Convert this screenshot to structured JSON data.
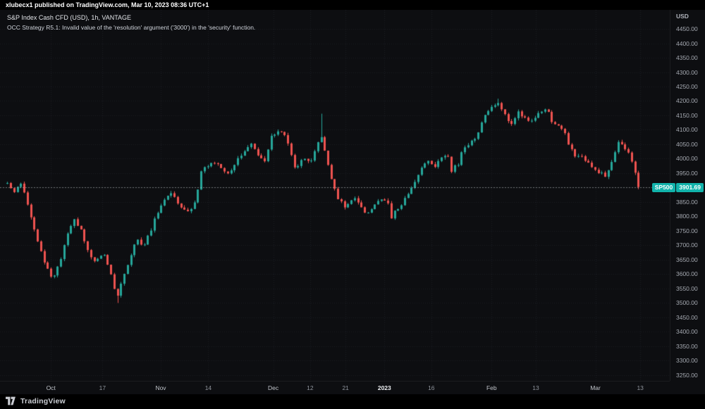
{
  "top_bar": {
    "attribution": "xlubecx1 published on TradingView.com, Mar 10, 2023 08:36 UTC+1"
  },
  "legend": {
    "title": "S&P Index Cash CFD (USD), 1h, VANTAGE",
    "error": "OCC Strategy R5.1: Invalid value of the 'resolution' argument ('3000') in the 'security' function."
  },
  "price_axis": {
    "currency": "USD",
    "labels": [
      "4450.00",
      "4400.00",
      "4350.00",
      "4300.00",
      "4250.00",
      "4200.00",
      "4150.00",
      "4100.00",
      "4050.00",
      "4000.00",
      "3950.00",
      "3900.00",
      "3850.00",
      "3800.00",
      "3750.00",
      "3700.00",
      "3650.00",
      "3600.00",
      "3550.00",
      "3500.00",
      "3450.00",
      "3400.00",
      "3350.00",
      "3300.00",
      "3250.00"
    ]
  },
  "time_axis": {
    "labels": [
      {
        "text": "Oct",
        "f": 0.076,
        "style": "month"
      },
      {
        "text": "17",
        "f": 0.153,
        "style": "day"
      },
      {
        "text": "Nov",
        "f": 0.24,
        "style": "month"
      },
      {
        "text": "14",
        "f": 0.311,
        "style": "day"
      },
      {
        "text": "Dec",
        "f": 0.408,
        "style": "month"
      },
      {
        "text": "12",
        "f": 0.463,
        "style": "day"
      },
      {
        "text": "21",
        "f": 0.516,
        "style": "day"
      },
      {
        "text": "2023",
        "f": 0.574,
        "style": "year"
      },
      {
        "text": "16",
        "f": 0.644,
        "style": "day"
      },
      {
        "text": "Feb",
        "f": 0.734,
        "style": "month"
      },
      {
        "text": "13",
        "f": 0.8,
        "style": "day"
      },
      {
        "text": "Mar",
        "f": 0.889,
        "style": "month"
      },
      {
        "text": "13",
        "f": 0.956,
        "style": "day"
      }
    ]
  },
  "last_price": {
    "symbol": "SP500",
    "value": "3901.69",
    "color": "#12b3ab"
  },
  "footer": {
    "brand": "TradingView"
  },
  "chart_data": {
    "type": "candlestick",
    "title": "S&P Index Cash CFD (USD), 1h, VANTAGE",
    "symbol": "SP500",
    "interval": "1h",
    "provider": "VANTAGE",
    "currency": "USD",
    "last_price": 3901.69,
    "ylim": [
      3250,
      4450
    ],
    "y_tick_step": 50,
    "axis_top_price": 4516,
    "axis_bottom_price": 3230,
    "candle_count": 190,
    "seed": 20230310,
    "jitter": 16,
    "wick": 8,
    "colors": {
      "background": "#0d0e11",
      "grid": "rgba(158,166,178,0.10)",
      "up": "#26a69a",
      "down": "#ef5350",
      "price_line": "rgba(209,214,220,0.50)"
    },
    "special_wicks": [
      {
        "f": 0.174,
        "price": 3500
      },
      {
        "f": 0.479,
        "price": 4156
      },
      {
        "f": 0.742,
        "price": 4208
      }
    ],
    "price_path": [
      [
        0.011,
        3915
      ],
      [
        0.021,
        3890
      ],
      [
        0.032,
        3920
      ],
      [
        0.042,
        3830
      ],
      [
        0.058,
        3700
      ],
      [
        0.068,
        3620
      ],
      [
        0.079,
        3585
      ],
      [
        0.089,
        3640
      ],
      [
        0.1,
        3730
      ],
      [
        0.111,
        3790
      ],
      [
        0.121,
        3750
      ],
      [
        0.132,
        3680
      ],
      [
        0.142,
        3640
      ],
      [
        0.153,
        3680
      ],
      [
        0.163,
        3620
      ],
      [
        0.174,
        3510
      ],
      [
        0.184,
        3590
      ],
      [
        0.195,
        3670
      ],
      [
        0.205,
        3720
      ],
      [
        0.216,
        3700
      ],
      [
        0.226,
        3760
      ],
      [
        0.237,
        3830
      ],
      [
        0.247,
        3870
      ],
      [
        0.258,
        3880
      ],
      [
        0.268,
        3840
      ],
      [
        0.279,
        3810
      ],
      [
        0.289,
        3840
      ],
      [
        0.3,
        3950
      ],
      [
        0.311,
        3980
      ],
      [
        0.321,
        3990
      ],
      [
        0.332,
        3960
      ],
      [
        0.342,
        3940
      ],
      [
        0.353,
        3990
      ],
      [
        0.363,
        4030
      ],
      [
        0.374,
        4050
      ],
      [
        0.384,
        4020
      ],
      [
        0.395,
        3985
      ],
      [
        0.405,
        4080
      ],
      [
        0.416,
        4090
      ],
      [
        0.421,
        4100
      ],
      [
        0.432,
        4030
      ],
      [
        0.442,
        3960
      ],
      [
        0.453,
        4010
      ],
      [
        0.463,
        3990
      ],
      [
        0.474,
        4050
      ],
      [
        0.479,
        4080
      ],
      [
        0.484,
        4040
      ],
      [
        0.489,
        3980
      ],
      [
        0.495,
        3920
      ],
      [
        0.505,
        3860
      ],
      [
        0.516,
        3830
      ],
      [
        0.526,
        3870
      ],
      [
        0.537,
        3850
      ],
      [
        0.547,
        3800
      ],
      [
        0.558,
        3830
      ],
      [
        0.568,
        3860
      ],
      [
        0.579,
        3840
      ],
      [
        0.584,
        3800
      ],
      [
        0.595,
        3830
      ],
      [
        0.605,
        3870
      ],
      [
        0.616,
        3900
      ],
      [
        0.626,
        3960
      ],
      [
        0.637,
        3990
      ],
      [
        0.647,
        3970
      ],
      [
        0.658,
        4000
      ],
      [
        0.668,
        4020
      ],
      [
        0.674,
        3960
      ],
      [
        0.684,
        3980
      ],
      [
        0.689,
        4020
      ],
      [
        0.7,
        4050
      ],
      [
        0.711,
        4080
      ],
      [
        0.721,
        4140
      ],
      [
        0.732,
        4170
      ],
      [
        0.742,
        4195
      ],
      [
        0.753,
        4150
      ],
      [
        0.763,
        4120
      ],
      [
        0.774,
        4160
      ],
      [
        0.784,
        4140
      ],
      [
        0.795,
        4130
      ],
      [
        0.805,
        4160
      ],
      [
        0.816,
        4170
      ],
      [
        0.821,
        4140
      ],
      [
        0.832,
        4110
      ],
      [
        0.842,
        4090
      ],
      [
        0.853,
        4030
      ],
      [
        0.858,
        4000
      ],
      [
        0.868,
        4010
      ],
      [
        0.879,
        3990
      ],
      [
        0.884,
        3960
      ],
      [
        0.895,
        3945
      ],
      [
        0.9,
        3960
      ],
      [
        0.905,
        3930
      ],
      [
        0.916,
        4010
      ],
      [
        0.924,
        4060
      ],
      [
        0.932,
        4040
      ],
      [
        0.942,
        4000
      ],
      [
        0.947,
        3960
      ],
      [
        0.953,
        3901.69
      ]
    ]
  }
}
